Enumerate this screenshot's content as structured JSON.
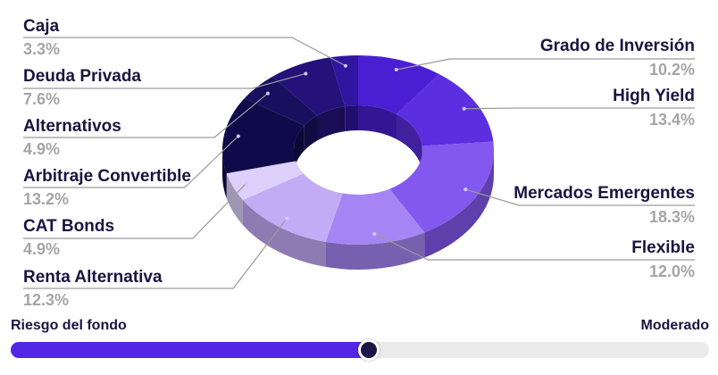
{
  "chart_data": {
    "type": "pie",
    "categories": [
      "Grado de Inversión",
      "High Yield",
      "Mercados Emergentes",
      "Flexible",
      "Renta Alternativa",
      "CAT Bonds",
      "Arbitraje Convertible",
      "Alternativos",
      "Deuda Privada",
      "Caja"
    ],
    "values": [
      10.2,
      13.4,
      18.3,
      12.0,
      12.3,
      4.9,
      13.2,
      4.9,
      7.6,
      3.3
    ],
    "value_labels": [
      "10.2%",
      "13.4%",
      "18.3%",
      "12.0%",
      "12.3%",
      "4.9%",
      "13.2%",
      "4.9%",
      "7.6%",
      "3.3%"
    ],
    "colors": [
      "#4a1fd4",
      "#5b2ee0",
      "#8358ee",
      "#a585f3",
      "#c4abf6",
      "#ddd0fb",
      "#0f0b4a",
      "#1a0f5e",
      "#24127a",
      "#2f15a0"
    ],
    "style": "3d-donut"
  },
  "risk": {
    "title": "Riesgo del fondo",
    "level": "Moderado",
    "level_fraction": 0.51,
    "fill_color": "#5227e6",
    "track_color": "#ebebeb"
  }
}
